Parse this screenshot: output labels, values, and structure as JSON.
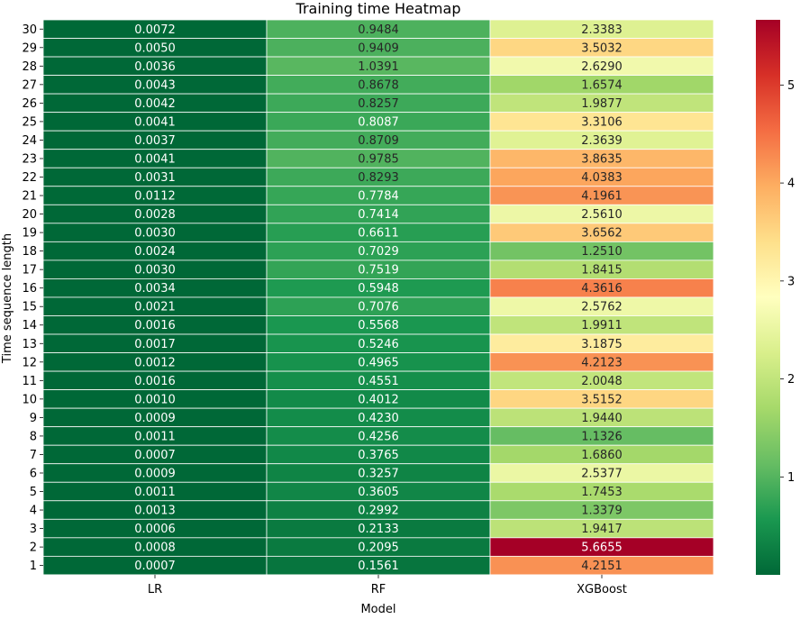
{
  "chart_data": {
    "type": "heatmap",
    "title": "Training time Heatmap",
    "xlabel": "Model",
    "ylabel": "Time sequence length",
    "columns": [
      "LR",
      "RF",
      "XGBoost"
    ],
    "rows": [
      "30",
      "29",
      "28",
      "27",
      "26",
      "25",
      "24",
      "23",
      "22",
      "21",
      "20",
      "19",
      "18",
      "17",
      "16",
      "15",
      "14",
      "13",
      "12",
      "11",
      "10",
      "9",
      "8",
      "7",
      "6",
      "5",
      "4",
      "3",
      "2",
      "1"
    ],
    "values": [
      [
        "0.0072",
        "0.9484",
        "2.3383"
      ],
      [
        "0.0050",
        "0.9409",
        "3.5032"
      ],
      [
        "0.0036",
        "1.0391",
        "2.6290"
      ],
      [
        "0.0043",
        "0.8678",
        "1.6574"
      ],
      [
        "0.0042",
        "0.8257",
        "1.9877"
      ],
      [
        "0.0041",
        "0.8087",
        "3.3106"
      ],
      [
        "0.0037",
        "0.8709",
        "2.3639"
      ],
      [
        "0.0041",
        "0.9785",
        "3.8635"
      ],
      [
        "0.0031",
        "0.8293",
        "4.0383"
      ],
      [
        "0.0112",
        "0.7784",
        "4.1961"
      ],
      [
        "0.0028",
        "0.7414",
        "2.5610"
      ],
      [
        "0.0030",
        "0.6611",
        "3.6562"
      ],
      [
        "0.0024",
        "0.7029",
        "1.2510"
      ],
      [
        "0.0030",
        "0.7519",
        "1.8415"
      ],
      [
        "0.0034",
        "0.5948",
        "4.3616"
      ],
      [
        "0.0021",
        "0.7076",
        "2.5762"
      ],
      [
        "0.0016",
        "0.5568",
        "1.9911"
      ],
      [
        "0.0017",
        "0.5246",
        "3.1875"
      ],
      [
        "0.0012",
        "0.4965",
        "4.2123"
      ],
      [
        "0.0016",
        "0.4551",
        "2.0048"
      ],
      [
        "0.0010",
        "0.4012",
        "3.5152"
      ],
      [
        "0.0009",
        "0.4230",
        "1.9440"
      ],
      [
        "0.0011",
        "0.4256",
        "1.1326"
      ],
      [
        "0.0007",
        "0.3765",
        "1.6860"
      ],
      [
        "0.0009",
        "0.3257",
        "2.5377"
      ],
      [
        "0.0011",
        "0.3605",
        "1.7453"
      ],
      [
        "0.0013",
        "0.2992",
        "1.3379"
      ],
      [
        "0.0006",
        "0.2133",
        "1.9417"
      ],
      [
        "0.0008",
        "0.2095",
        "5.6655"
      ],
      [
        "0.0007",
        "0.1561",
        "4.2151"
      ]
    ],
    "colormap": "RdYlGn_r",
    "vmin": 0.0006,
    "vmax": 5.6655,
    "colorbar_ticks": [
      "1",
      "2",
      "3",
      "4",
      "5"
    ],
    "cell_border_color": "#ffffff",
    "grid": false,
    "legend": "colorbar-right"
  }
}
